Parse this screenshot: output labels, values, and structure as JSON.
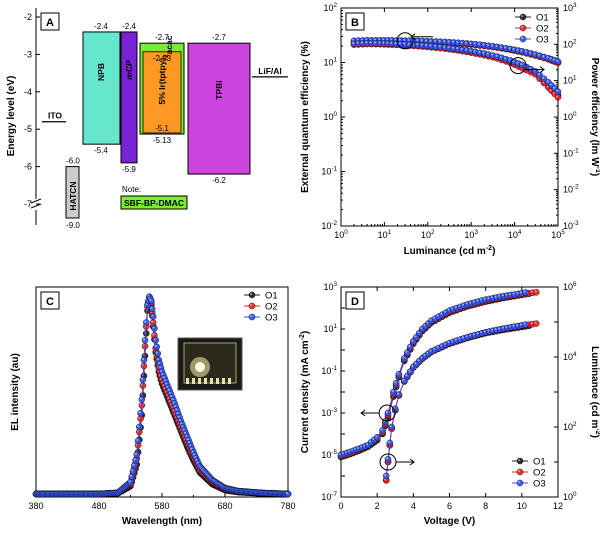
{
  "chart_data": [
    {
      "panel": "A",
      "type": "diagram",
      "ylabel": "Energy level (eV)",
      "yticks": [
        -7,
        -6,
        -5,
        -4,
        -3,
        -2
      ],
      "ylim": [
        -7.5,
        -1.8
      ],
      "left_electrode": {
        "label": "ITO",
        "level": -4.8
      },
      "right_electrode": {
        "label": "LiF/Al",
        "level": -3.6
      },
      "layers": [
        {
          "name": "HATCN",
          "lumo": -6.0,
          "homo": -9.0,
          "lumo_label": "-6.0",
          "homo_label": "-9.0",
          "color": "#cccccc",
          "break": true
        },
        {
          "name": "NPB",
          "lumo": -2.4,
          "homo": -5.4,
          "lumo_label": "-2.4",
          "homo_label": "-5.4",
          "color": "#66e6cc"
        },
        {
          "name": "mCP",
          "lumo": -2.4,
          "homo": -5.9,
          "lumo_label": "-2.4",
          "homo_label": "-5.9",
          "color": "#7a22d6"
        },
        {
          "name": "SBF-BP-DMAC",
          "lumo": -2.7,
          "homo": -5.13,
          "lumo_label": "-2.7",
          "homo_label": "-5.13",
          "color": "#77ee33"
        },
        {
          "name": "Ir(tptpy)2acac",
          "lumo": -2.93,
          "homo": -5.1,
          "lumo_label": "-2.93",
          "homo_label": "-5.1",
          "color": "#ff9922"
        },
        {
          "name": "TPBi",
          "lumo": -2.7,
          "homo": -6.2,
          "lumo_label": "-2.7",
          "homo_label": "-6.2",
          "color": "#cc44dd"
        }
      ],
      "dopant_label_prefix": "5%",
      "dopant_label_main": "Ir(tptpy)",
      "dopant_label_sub": "2",
      "dopant_label_end": "acac",
      "note_title": "Note:",
      "note_label": "SBF-BP-DMAC"
    },
    {
      "panel": "B",
      "type": "scatter",
      "xlabel_main": "Luminance (cd m",
      "xlabel_sup": "-2",
      "xlabel_end": ")",
      "ylabel": "External quantum efficiency (%)",
      "y2label_main": "Power efficiency (lm W",
      "y2label_sup": "-1",
      "y2label_end": ")",
      "xscale": "log",
      "yscale": "log",
      "y2scale": "log",
      "xlim": [
        1,
        100000
      ],
      "ylim": [
        0.01,
        100
      ],
      "y2lim": [
        0.001,
        1000
      ],
      "x_tick_labels": [
        [
          "10",
          "0"
        ],
        [
          "10",
          "1"
        ],
        [
          "10",
          "2"
        ],
        [
          "10",
          "3"
        ],
        [
          "10",
          "4"
        ],
        [
          "10",
          "5"
        ]
      ],
      "y_tick_labels": [
        [
          "10",
          "-2"
        ],
        [
          "10",
          "-1"
        ],
        [
          "10",
          "0"
        ],
        [
          "10",
          "1"
        ],
        [
          "10",
          "2"
        ]
      ],
      "y2_tick_labels": [
        [
          "10",
          "-3"
        ],
        [
          "10",
          "-2"
        ],
        [
          "10",
          "-1"
        ],
        [
          "10",
          "0"
        ],
        [
          "10",
          "1"
        ],
        [
          "10",
          "2"
        ],
        [
          "10",
          "3"
        ]
      ],
      "legend": [
        "O1",
        "O2",
        "O3"
      ],
      "legend_position": "top-right",
      "series_eqe": [
        {
          "name": "O1",
          "x": [
            2,
            4,
            8,
            15,
            30,
            60,
            120,
            250,
            500,
            1000,
            2000,
            4000,
            8000,
            15000,
            30000,
            60000,
            100000
          ],
          "y": [
            24.5,
            25,
            25,
            25,
            24.8,
            24.5,
            24,
            23.4,
            22.6,
            21.6,
            20.4,
            19,
            17.4,
            15.7,
            13.7,
            11.7,
            10.1
          ]
        },
        {
          "name": "O2",
          "x": [
            2,
            4,
            8,
            15,
            30,
            60,
            120,
            250,
            500,
            1000,
            2000,
            4000,
            8000,
            15000,
            30000,
            60000,
            100000
          ],
          "y": [
            24,
            24.6,
            24.7,
            24.7,
            24.5,
            24.2,
            23.7,
            23.1,
            22.3,
            21.3,
            20.1,
            18.7,
            17.1,
            15.4,
            13.4,
            11.4,
            9.8
          ]
        },
        {
          "name": "O3",
          "x": [
            2,
            4,
            8,
            15,
            30,
            60,
            120,
            250,
            500,
            1000,
            2000,
            4000,
            8000,
            15000,
            30000,
            60000,
            100000
          ],
          "y": [
            25,
            25.5,
            25.5,
            25.4,
            25.2,
            24.9,
            24.4,
            23.8,
            23,
            22,
            20.8,
            19.3,
            17.7,
            16,
            14,
            12,
            10.4
          ]
        }
      ],
      "series_pe": [
        {
          "name": "O1",
          "x": [
            2,
            4,
            8,
            15,
            30,
            60,
            120,
            250,
            500,
            1000,
            2000,
            4000,
            8000,
            15000,
            30000,
            60000,
            100000
          ],
          "y": [
            100,
            104,
            103,
            100,
            96,
            91,
            85,
            78,
            70,
            61,
            52,
            43,
            33,
            24,
            16,
            7,
            4
          ]
        },
        {
          "name": "O2",
          "x": [
            2,
            4,
            8,
            15,
            30,
            60,
            120,
            250,
            500,
            1000,
            2000,
            4000,
            8000,
            15000,
            30000,
            60000,
            100000
          ],
          "y": [
            98,
            102,
            101,
            98,
            94,
            89,
            83,
            76,
            68,
            59,
            50,
            41,
            31,
            22,
            15,
            6.5,
            3.5
          ]
        },
        {
          "name": "O3",
          "x": [
            2,
            4,
            8,
            15,
            30,
            60,
            120,
            250,
            500,
            1000,
            2000,
            4000,
            8000,
            15000,
            30000,
            60000,
            100000
          ],
          "y": [
            104,
            108,
            107,
            104,
            100,
            95,
            89,
            82,
            74,
            65,
            56,
            46,
            36,
            27,
            18,
            9,
            5
          ]
        }
      ]
    },
    {
      "panel": "C",
      "type": "line",
      "xlabel": "Wavelength (nm)",
      "ylabel": "EL intensity (au)",
      "xlim": [
        380,
        780
      ],
      "xticks": [
        380,
        480,
        580,
        680,
        780
      ],
      "legend": [
        "O1",
        "O2",
        "O3"
      ],
      "legend_position": "top-right",
      "series": [
        {
          "name": "O1",
          "x": [
            380,
            440,
            480,
            510,
            530,
            540,
            548,
            553,
            557,
            560,
            563,
            566,
            570,
            575,
            580,
            590,
            600,
            610,
            620,
            630,
            640,
            660,
            680,
            700,
            740,
            780
          ],
          "y": [
            0,
            0,
            0,
            0.004,
            0.04,
            0.15,
            0.4,
            0.7,
            0.93,
            1.0,
            0.96,
            0.85,
            0.72,
            0.62,
            0.56,
            0.48,
            0.4,
            0.32,
            0.24,
            0.17,
            0.11,
            0.05,
            0.02,
            0.01,
            0.003,
            0
          ]
        },
        {
          "name": "O2",
          "x": [
            380,
            440,
            480,
            510,
            530,
            540,
            548,
            553,
            557,
            560,
            563,
            566,
            570,
            575,
            580,
            590,
            600,
            610,
            620,
            630,
            640,
            660,
            680,
            700,
            740,
            780
          ],
          "y": [
            0,
            0,
            0,
            0.005,
            0.05,
            0.18,
            0.45,
            0.75,
            0.95,
            1.0,
            0.97,
            0.87,
            0.74,
            0.64,
            0.58,
            0.5,
            0.42,
            0.34,
            0.26,
            0.19,
            0.12,
            0.06,
            0.025,
            0.012,
            0.004,
            0
          ]
        },
        {
          "name": "O3",
          "x": [
            380,
            440,
            480,
            510,
            530,
            540,
            548,
            553,
            557,
            560,
            563,
            566,
            570,
            575,
            580,
            590,
            600,
            610,
            620,
            630,
            640,
            660,
            680,
            700,
            740,
            780
          ],
          "y": [
            0,
            0,
            0,
            0.006,
            0.06,
            0.2,
            0.48,
            0.78,
            0.96,
            1.0,
            0.98,
            0.9,
            0.78,
            0.68,
            0.62,
            0.54,
            0.46,
            0.37,
            0.29,
            0.21,
            0.14,
            0.07,
            0.03,
            0.015,
            0.005,
            0
          ]
        }
      ]
    },
    {
      "panel": "D",
      "type": "scatter",
      "xlabel": "Voltage (V)",
      "ylabel_main": "Current density (mA cm",
      "ylabel_sup": "-2",
      "ylabel_end": ")",
      "y2label_main": "Luminance (cd m",
      "y2label_sup": "-2",
      "y2label_end": ")",
      "xlim": [
        0,
        12
      ],
      "ylim": [
        1e-07,
        1000
      ],
      "y2lim": [
        1,
        1000000
      ],
      "yscale": "log",
      "y2scale": "log",
      "xticks": [
        0,
        2,
        4,
        6,
        8,
        10,
        12
      ],
      "y_tick_labels": [
        [
          "10",
          "-7"
        ],
        [
          "10",
          "-5"
        ],
        [
          "10",
          "-3"
        ],
        [
          "10",
          "-1"
        ],
        [
          "10",
          "1"
        ],
        [
          "10",
          "3"
        ]
      ],
      "y2_tick_labels": [
        [
          "10",
          "0"
        ],
        [
          "10",
          "2"
        ],
        [
          "10",
          "4"
        ],
        [
          "10",
          "6"
        ]
      ],
      "legend": [
        "O1",
        "O2",
        "O3"
      ],
      "legend_position": "bottom-right",
      "series_j": [
        {
          "name": "O1",
          "x": [
            0,
            0.5,
            1,
            1.5,
            2,
            2.3,
            2.6,
            2.9,
            3.2,
            3.5,
            4,
            4.5,
            5,
            6,
            7,
            8,
            9,
            10,
            10.4
          ],
          "y": [
            8e-06,
            1.1e-05,
            1.6e-05,
            2.5e-05,
            5e-05,
            0.0001,
            0.0006,
            0.006,
            0.05,
            0.3,
            2,
            8,
            20,
            60,
            120,
            200,
            300,
            420,
            480
          ]
        },
        {
          "name": "O2",
          "x": [
            0,
            0.5,
            1,
            1.5,
            2,
            2.3,
            2.6,
            2.9,
            3.2,
            3.5,
            4,
            4.5,
            5,
            6,
            7,
            8,
            9,
            10,
            10.8
          ],
          "y": [
            9e-06,
            1.2e-05,
            1.8e-05,
            2.8e-05,
            6e-05,
            0.00012,
            0.0008,
            0.008,
            0.06,
            0.35,
            2.3,
            9,
            22,
            65,
            130,
            220,
            330,
            450,
            560
          ]
        },
        {
          "name": "O3",
          "x": [
            0,
            0.5,
            1,
            1.5,
            2,
            2.3,
            2.6,
            2.9,
            3.2,
            3.5,
            4,
            4.5,
            5,
            6,
            7,
            8,
            9,
            10,
            10.2
          ],
          "y": [
            1e-05,
            1.4e-05,
            2e-05,
            3e-05,
            7e-05,
            0.00015,
            0.001,
            0.01,
            0.07,
            0.4,
            2.6,
            10,
            25,
            75,
            150,
            250,
            370,
            500,
            550
          ]
        }
      ],
      "series_l": [
        {
          "name": "O1",
          "x": [
            2.5,
            2.6,
            2.7,
            2.8,
            3,
            3.2,
            3.5,
            4,
            4.5,
            5,
            6,
            7,
            8,
            9,
            10,
            10.4
          ],
          "y": [
            3,
            10,
            30,
            90,
            300,
            800,
            2000,
            5000,
            9000,
            14000,
            24000,
            35000,
            48000,
            60000,
            72000,
            78000
          ]
        },
        {
          "name": "O2",
          "x": [
            2.5,
            2.6,
            2.7,
            2.8,
            3,
            3.2,
            3.5,
            4,
            4.5,
            5,
            6,
            7,
            8,
            9,
            10,
            10.8
          ],
          "y": [
            3,
            10,
            30,
            90,
            300,
            800,
            2000,
            5000,
            9000,
            14000,
            24000,
            36000,
            50000,
            63000,
            78000,
            90000
          ]
        },
        {
          "name": "O3",
          "x": [
            2.5,
            2.6,
            2.7,
            2.8,
            3,
            3.2,
            3.5,
            4,
            4.5,
            5,
            6,
            7,
            8,
            9,
            10,
            10.2
          ],
          "y": [
            4,
            12,
            35,
            100,
            330,
            850,
            2100,
            5200,
            9300,
            14500,
            25000,
            37000,
            51000,
            65000,
            80000,
            84000
          ]
        }
      ]
    }
  ],
  "series_colors": {
    "O1": "#222222",
    "O2": "#ee2222",
    "O3": "#3355ee"
  }
}
